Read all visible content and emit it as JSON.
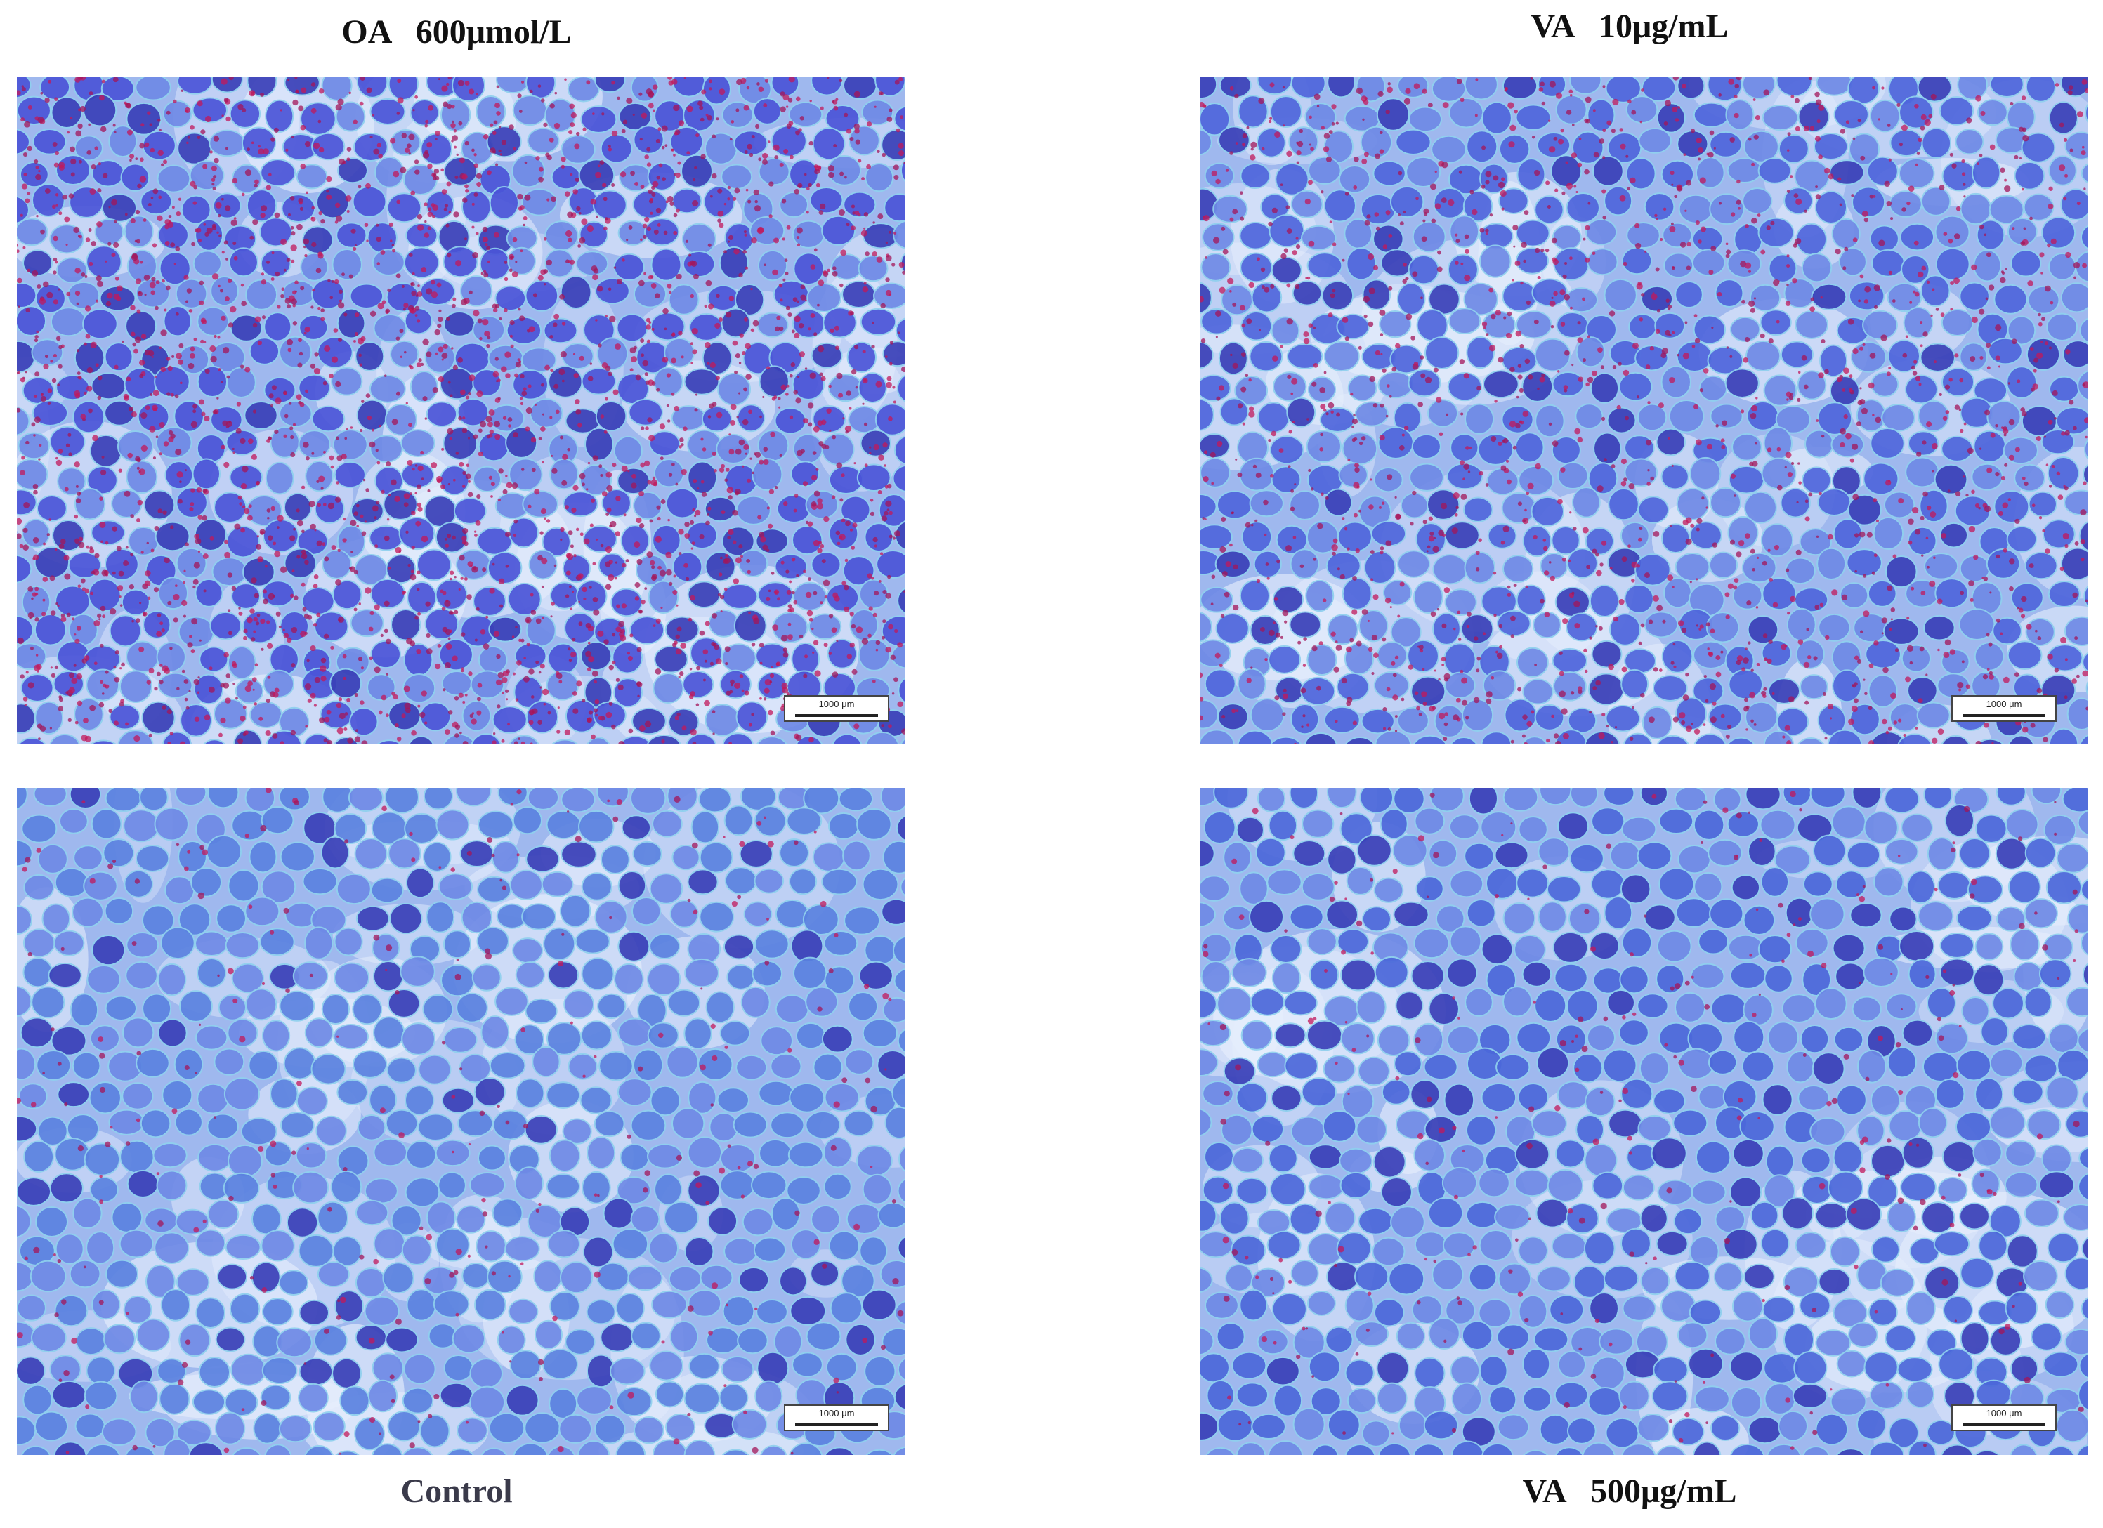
{
  "figure": {
    "panels": [
      {
        "id": "oa",
        "title": "OA   600μmol/L",
        "scale_label": "1000 μm",
        "stain_level": "high",
        "base": "#4b55d8"
      },
      {
        "id": "va10",
        "title": "VA   10μg/mL",
        "scale_label": "1000 μm",
        "stain_level": "medium",
        "base": "#4f66dc"
      },
      {
        "id": "control",
        "title": "Control",
        "scale_label": "1000 μm",
        "stain_level": "low",
        "base": "#5b82e0"
      },
      {
        "id": "va500",
        "title": "VA   500μg/mL",
        "scale_label": "1000 μm",
        "stain_level": "low",
        "base": "#4c68da"
      }
    ]
  }
}
